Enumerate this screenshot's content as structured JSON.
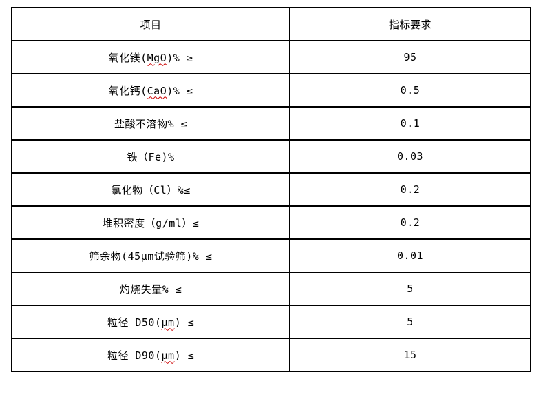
{
  "colors": {
    "background": "#ffffff",
    "border": "#000000",
    "text": "#000000",
    "spellcheck_underline": "#cc0000"
  },
  "table": {
    "headers": [
      "项目",
      "指标要求"
    ],
    "rows": [
      {
        "pre": "氧化镁(",
        "mark": "MgO",
        "post": ")% ≥",
        "value": "95"
      },
      {
        "pre": "氧化钙(",
        "mark": "CaO",
        "post": ")% ≤",
        "value": "0.5"
      },
      {
        "pre": "盐酸不溶物% ≤",
        "mark": "",
        "post": "",
        "value": "0.1"
      },
      {
        "pre": "铁（Fe)%",
        "mark": "",
        "post": "",
        "value": "0.03"
      },
      {
        "pre": "氯化物（Cl）%≤",
        "mark": "",
        "post": "",
        "value": "0.2"
      },
      {
        "pre": "堆积密度（g/ml）≤",
        "mark": "",
        "post": "",
        "value": "0.2"
      },
      {
        "pre": "筛余物(45μm试验筛)% ≤",
        "mark": "",
        "post": "",
        "value": "0.01"
      },
      {
        "pre": "灼烧失量% ≤",
        "mark": "",
        "post": "",
        "value": "5"
      },
      {
        "pre": "粒径 D50(",
        "mark": "μm",
        "post": ") ≤",
        "value": "5"
      },
      {
        "pre": "粒径 D90(",
        "mark": "μm",
        "post": ") ≤",
        "value": "15"
      }
    ]
  }
}
